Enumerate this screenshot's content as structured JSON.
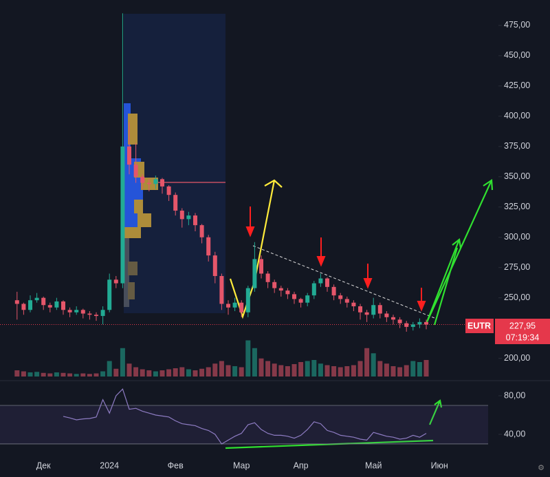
{
  "chart_data": {
    "type": "candlestick",
    "categories": [
      null,
      null,
      null,
      null,
      "Дек",
      null,
      null,
      null,
      null,
      null,
      null,
      null,
      null,
      null,
      "2024",
      null,
      null,
      null,
      null,
      null,
      null,
      null,
      null,
      null,
      "Фев",
      null,
      null,
      null,
      null,
      null,
      null,
      null,
      null,
      null,
      "Мар",
      null,
      null,
      null,
      null,
      null,
      null,
      null,
      null,
      "Апр",
      null,
      null,
      null,
      null,
      null,
      null,
      null,
      null,
      null,
      null,
      "Май",
      null,
      null,
      null,
      null,
      null,
      null,
      null,
      null,
      null,
      "Июн",
      null,
      null,
      null,
      null,
      null,
      null,
      null
    ],
    "open": [
      248,
      245,
      240,
      248,
      250,
      244,
      242,
      247,
      240,
      238,
      240,
      237,
      236,
      235,
      240,
      265,
      262,
      375,
      360,
      350,
      345,
      344,
      348,
      342,
      335,
      322,
      315,
      318,
      310,
      300,
      285,
      268,
      245,
      242,
      246,
      238,
      258,
      282,
      270,
      263,
      258,
      256,
      253,
      249,
      246,
      252,
      262,
      266,
      259,
      252,
      249,
      246,
      243,
      238,
      236,
      244,
      237,
      234,
      232,
      229,
      226,
      228,
      230,
      null,
      null,
      null,
      null,
      null,
      null,
      null,
      null,
      null
    ],
    "high": [
      255,
      246,
      252,
      254,
      251,
      246,
      250,
      248,
      242,
      243,
      241,
      239,
      238,
      243,
      270,
      268,
      485,
      395,
      378,
      352,
      348,
      351,
      349,
      343,
      337,
      324,
      321,
      320,
      311,
      302,
      288,
      270,
      248,
      250,
      248,
      260,
      296,
      285,
      272,
      265,
      260,
      258,
      255,
      250,
      254,
      264,
      270,
      267,
      261,
      254,
      251,
      248,
      245,
      240,
      250,
      246,
      239,
      236,
      234,
      231,
      230,
      233,
      232,
      null,
      null,
      null,
      null,
      null,
      null,
      null,
      null,
      null
    ],
    "low": [
      232,
      236,
      238,
      246,
      240,
      238,
      240,
      236,
      234,
      236,
      233,
      232,
      231,
      228,
      238,
      258,
      258,
      352,
      345,
      340,
      338,
      340,
      336,
      330,
      318,
      308,
      310,
      305,
      295,
      280,
      262,
      240,
      236,
      239,
      234,
      234,
      255,
      266,
      258,
      254,
      251,
      249,
      245,
      242,
      243,
      249,
      259,
      255,
      248,
      245,
      242,
      239,
      232,
      230,
      233,
      233,
      230,
      228,
      225,
      222,
      223,
      225,
      224,
      null,
      null,
      null,
      null,
      null,
      null,
      null,
      null,
      null
    ],
    "close": [
      245,
      240,
      248,
      250,
      244,
      242,
      247,
      240,
      238,
      240,
      237,
      236,
      235,
      240,
      265,
      262,
      375,
      360,
      350,
      345,
      344,
      348,
      342,
      335,
      322,
      315,
      318,
      310,
      300,
      285,
      268,
      245,
      242,
      246,
      238,
      258,
      282,
      270,
      263,
      258,
      256,
      253,
      249,
      246,
      252,
      262,
      266,
      259,
      252,
      249,
      246,
      243,
      238,
      236,
      244,
      237,
      234,
      232,
      229,
      226,
      228,
      230,
      227.95,
      null,
      null,
      null,
      null,
      null,
      null,
      null,
      null,
      null
    ],
    "volume": [
      12,
      10,
      8,
      9,
      7,
      6,
      8,
      7,
      6,
      5,
      6,
      5,
      6,
      10,
      30,
      15,
      55,
      25,
      18,
      14,
      12,
      10,
      12,
      14,
      16,
      18,
      14,
      12,
      15,
      18,
      25,
      30,
      22,
      20,
      18,
      70,
      55,
      35,
      30,
      25,
      22,
      20,
      24,
      28,
      30,
      32,
      25,
      22,
      20,
      18,
      20,
      22,
      30,
      55,
      45,
      30,
      25,
      20,
      18,
      22,
      30,
      28,
      32,
      null,
      null,
      null,
      null,
      null,
      null,
      null,
      null,
      null
    ],
    "up_color": "#22ab94",
    "down_color": "#e5566a",
    "ylim": [
      185,
      496
    ],
    "yticks": [
      {
        "value": 200,
        "label": "200,00"
      },
      {
        "value": 225,
        "label": "225,00"
      },
      {
        "value": 250,
        "label": "250,00"
      },
      {
        "value": 275,
        "label": "275,00"
      },
      {
        "value": 300,
        "label": "300,00"
      },
      {
        "value": 325,
        "label": "325,00"
      },
      {
        "value": 350,
        "label": "350,00"
      },
      {
        "value": 375,
        "label": "375,00"
      },
      {
        "value": 400,
        "label": "400,00"
      },
      {
        "value": 425,
        "label": "425,00"
      },
      {
        "value": 450,
        "label": "450,00"
      },
      {
        "value": 475,
        "label": "475,00"
      }
    ],
    "last_price": {
      "symbol": "EUTR",
      "price": {
        "value": 227.95,
        "label": "227,95"
      },
      "countdown": "07:19:34"
    },
    "rsi": {
      "color": "#8e7cc3",
      "values": [
        null,
        null,
        null,
        null,
        null,
        null,
        null,
        58.6,
        57,
        55,
        56,
        56.4,
        58,
        76,
        62,
        80,
        87,
        66,
        67,
        64,
        62,
        60,
        59,
        58,
        54,
        51,
        50,
        49,
        46,
        44,
        40,
        30,
        34,
        38,
        41,
        50,
        52,
        45,
        41,
        39,
        39,
        38,
        36,
        39,
        45,
        53,
        51,
        44,
        42,
        39,
        38,
        37,
        35,
        34,
        42,
        40,
        38,
        37,
        35,
        36,
        39,
        37,
        41,
        null,
        null,
        null,
        null,
        null,
        null,
        null,
        null,
        null
      ],
      "ylim": [
        21.4,
        90.7
      ],
      "band": [
        30,
        70
      ],
      "yticks": [
        {
          "value": 40,
          "label": "40,00"
        },
        {
          "value": 80,
          "label": "80,00"
        }
      ]
    }
  }
}
